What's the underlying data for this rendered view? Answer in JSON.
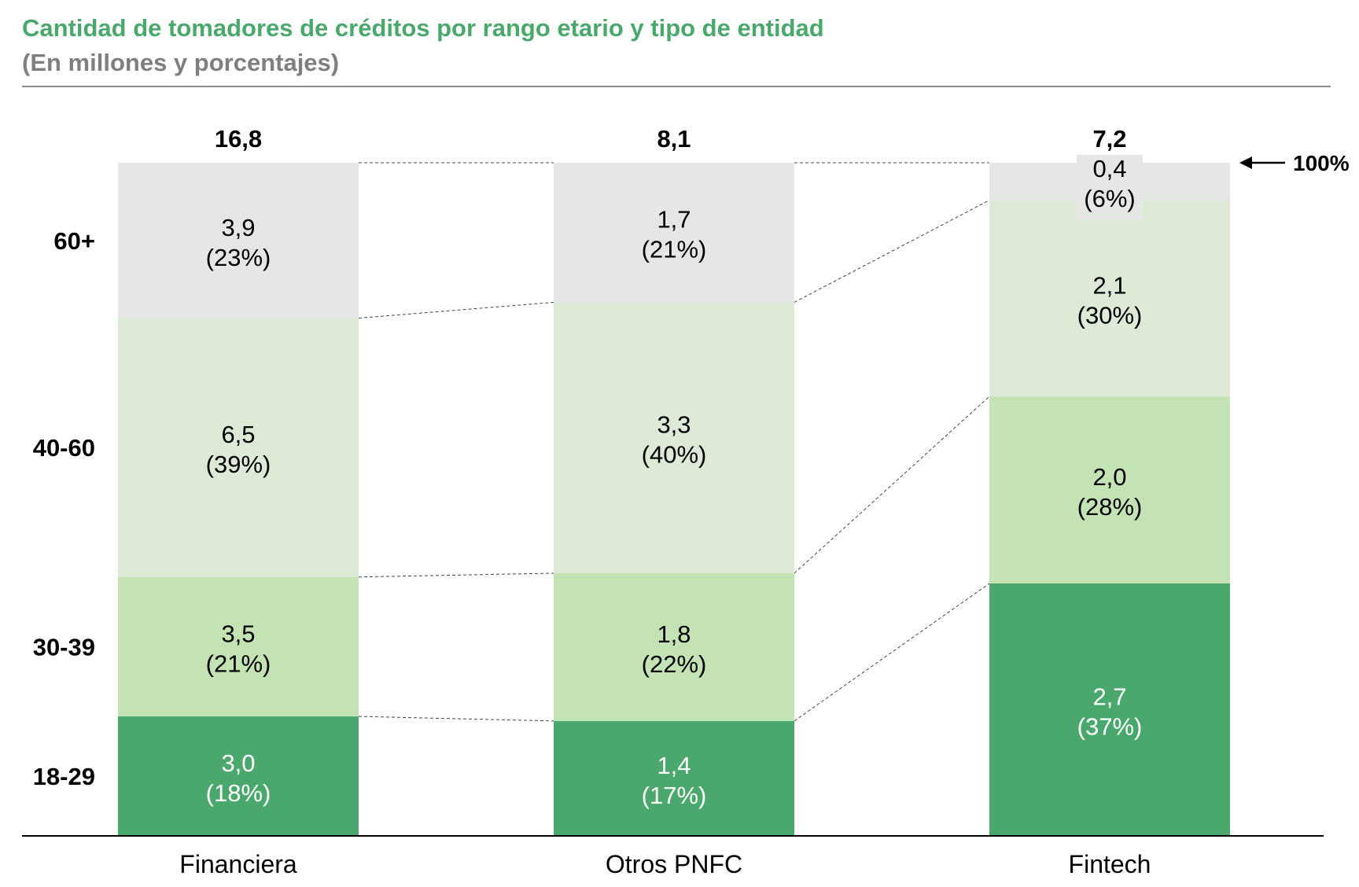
{
  "header": {
    "title": "Cantidad de tomadores de créditos por rango etario y tipo de entidad",
    "subtitle": "(En millones y porcentajes)"
  },
  "chart_data": {
    "type": "bar",
    "stacked": true,
    "normalized": true,
    "categories": [
      "Financiera",
      "Otros PNFC",
      "Fintech"
    ],
    "totals": [
      "16,8",
      "8,1",
      "7,2"
    ],
    "full_scale_label": "100%",
    "series": [
      {
        "name": "18-29",
        "color": "#4ba86c",
        "text_color": "#ffffff",
        "values": [
          3.0,
          1.4,
          2.7
        ],
        "shares": [
          18,
          17,
          37
        ],
        "value_labels": [
          "3,0",
          "1,4",
          "2,7"
        ],
        "share_labels": [
          "(18%)",
          "(17%)",
          "(37%)"
        ]
      },
      {
        "name": "30-39",
        "color": "#c3e3b5",
        "text_color": "#000000",
        "values": [
          3.5,
          1.8,
          2.0
        ],
        "shares": [
          21,
          22,
          28
        ],
        "value_labels": [
          "3,5",
          "1,8",
          "2,0"
        ],
        "share_labels": [
          "(21%)",
          "(22%)",
          "(28%)"
        ]
      },
      {
        "name": "40-60",
        "color": "#dcead7",
        "text_color": "#000000",
        "values": [
          6.5,
          3.3,
          2.1
        ],
        "shares": [
          39,
          40,
          30
        ],
        "value_labels": [
          "6,5",
          "3,3",
          "2,1"
        ],
        "share_labels": [
          "(39%)",
          "(40%)",
          "(30%)"
        ]
      },
      {
        "name": "60+",
        "color": "#e6e6e6",
        "text_color": "#000000",
        "values": [
          3.9,
          1.7,
          0.4
        ],
        "shares": [
          23,
          21,
          6
        ],
        "value_labels": [
          "3,9",
          "1,7",
          "0,4"
        ],
        "share_labels": [
          "(23%)",
          "(21%)",
          "(6%)"
        ]
      }
    ],
    "grid": false,
    "legend": "left"
  }
}
